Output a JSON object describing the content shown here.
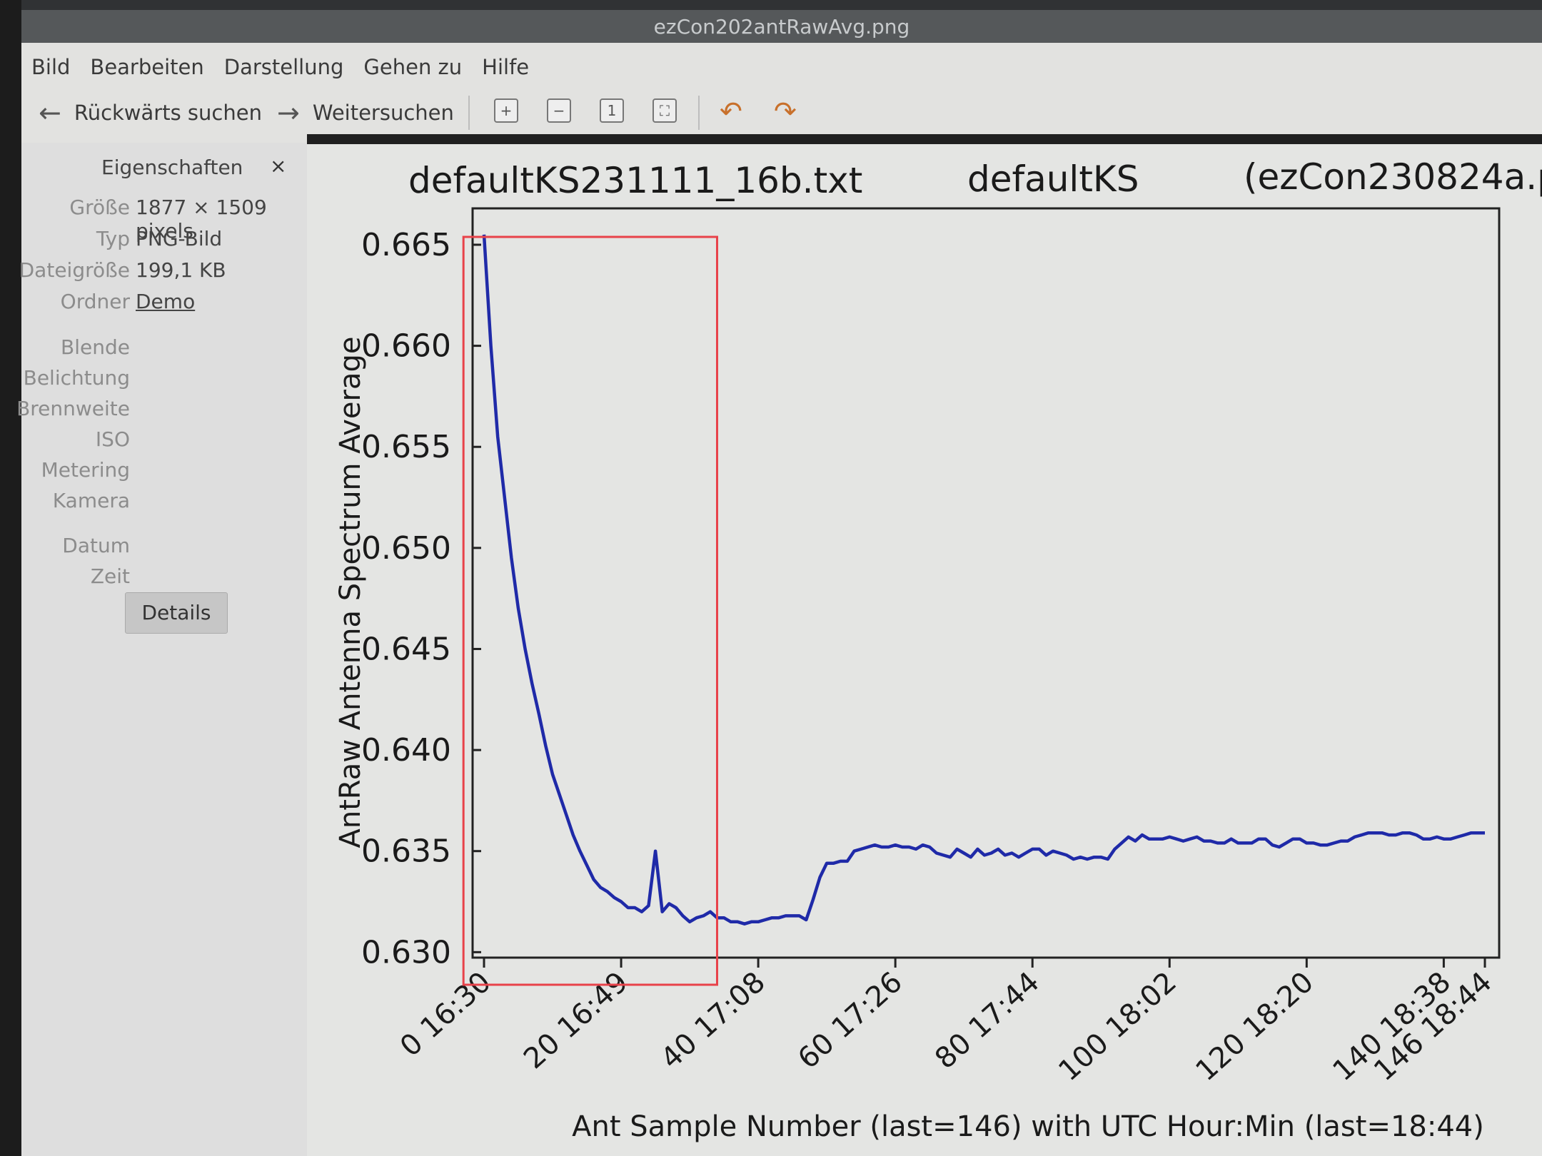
{
  "window": {
    "title": "ezCon202antRawAvg.png"
  },
  "menu": [
    "Bild",
    "Bearbeiten",
    "Darstellung",
    "Gehen zu",
    "Hilfe"
  ],
  "toolbar": {
    "back_label": "Rückwärts suchen",
    "forward_label": "Weitersuchen",
    "zoom_in_icon": "zoom-in-icon",
    "zoom_out_icon": "zoom-out-icon",
    "original_size_icon": "original-size-icon",
    "fit_icon": "fit-window-icon"
  },
  "sidebar": {
    "title": "Eigenschaften",
    "close": "×",
    "properties": [
      {
        "key": "Größe",
        "value": "1877 × 1509 pixels"
      },
      {
        "key": "Typ",
        "value": "PNG-Bild"
      },
      {
        "key": "Dateigröße",
        "value": "199,1 KB"
      },
      {
        "key": "Ordner",
        "value": "Demo"
      }
    ],
    "exif": [
      "Blende",
      "Belichtung",
      "Brennweite",
      "ISO",
      "Metering",
      "Kamera"
    ],
    "datetime": [
      "Datum",
      "Zeit"
    ],
    "details_button": "Details"
  },
  "chart_data": {
    "type": "line",
    "title_parts": [
      "defaultKS231111_16b.txt",
      "defaultKS",
      "(ezCon230824a.p"
    ],
    "xlabel": "Ant Sample Number (last=146) with UTC Hour:Min (last=18:44)",
    "ylabel": "AntRaw Antenna Spectrum Average",
    "xlim": [
      0,
      146
    ],
    "ylim": [
      0.6298,
      0.6668
    ],
    "yticks": [
      0.63,
      0.635,
      0.64,
      0.645,
      0.65,
      0.655,
      0.66,
      0.665
    ],
    "ytick_labels": [
      "0.630",
      "0.635",
      "0.640",
      "0.645",
      "0.650",
      "0.655",
      "0.660",
      "0.665"
    ],
    "xticks": [
      0,
      20,
      40,
      60,
      80,
      100,
      120,
      140,
      146
    ],
    "xtick_labels": [
      "0 16:30",
      "20 16:49",
      "40 17:08",
      "60 17:26",
      "80 17:44",
      "100 18:02",
      "120 18:20",
      "140 18:38",
      "146 18:44"
    ],
    "line_color": "#1f2aa8",
    "highlight_box_color": "#e8424a",
    "highlight_x_range": [
      -3,
      34
    ],
    "series": [
      {
        "x": [
          0,
          1,
          2,
          3,
          4,
          5,
          6,
          7,
          8,
          9,
          10,
          11,
          12,
          13,
          14,
          15,
          16,
          17,
          18,
          19,
          20,
          21,
          22,
          23,
          24,
          25,
          26,
          27,
          28,
          29,
          30,
          31,
          32,
          33,
          34,
          35,
          36,
          37,
          38,
          39,
          40,
          41,
          42,
          43,
          44,
          45,
          46,
          47,
          48,
          49,
          50,
          51,
          52,
          53,
          54,
          55,
          56,
          57,
          58,
          59,
          60,
          61,
          62,
          63,
          64,
          65,
          66,
          67,
          68,
          69,
          70,
          71,
          72,
          73,
          74,
          75,
          76,
          77,
          78,
          79,
          80,
          81,
          82,
          83,
          84,
          85,
          86,
          87,
          88,
          89,
          90,
          91,
          92,
          93,
          94,
          95,
          96,
          97,
          98,
          99,
          100,
          101,
          102,
          103,
          104,
          105,
          106,
          107,
          108,
          109,
          110,
          111,
          112,
          113,
          114,
          115,
          116,
          117,
          118,
          119,
          120,
          121,
          122,
          123,
          124,
          125,
          126,
          127,
          128,
          129,
          130,
          131,
          132,
          133,
          134,
          135,
          136,
          137,
          138,
          139,
          140,
          141,
          142,
          143,
          144,
          145,
          146
        ],
        "y": [
          0.6655,
          0.66,
          0.6555,
          0.6525,
          0.6495,
          0.647,
          0.645,
          0.6433,
          0.6418,
          0.6402,
          0.6388,
          0.6378,
          0.6368,
          0.6358,
          0.635,
          0.6343,
          0.6336,
          0.6332,
          0.633,
          0.6327,
          0.6325,
          0.6322,
          0.6322,
          0.632,
          0.6323,
          0.635,
          0.632,
          0.6324,
          0.6322,
          0.6318,
          0.6315,
          0.6317,
          0.6318,
          0.632,
          0.6317,
          0.6317,
          0.6315,
          0.6315,
          0.6314,
          0.6315,
          0.6315,
          0.6316,
          0.6317,
          0.6317,
          0.6318,
          0.6318,
          0.6318,
          0.6316,
          0.6326,
          0.6337,
          0.6344,
          0.6344,
          0.6345,
          0.6345,
          0.635,
          0.6351,
          0.6352,
          0.6353,
          0.6352,
          0.6352,
          0.6353,
          0.6352,
          0.6352,
          0.6351,
          0.6353,
          0.6352,
          0.6349,
          0.6348,
          0.6347,
          0.6351,
          0.6349,
          0.6347,
          0.6351,
          0.6348,
          0.6349,
          0.6351,
          0.6348,
          0.6349,
          0.6347,
          0.6349,
          0.6351,
          0.6351,
          0.6348,
          0.635,
          0.6349,
          0.6348,
          0.6346,
          0.6347,
          0.6346,
          0.6347,
          0.6347,
          0.6346,
          0.6351,
          0.6354,
          0.6357,
          0.6355,
          0.6358,
          0.6356,
          0.6356,
          0.6356,
          0.6357,
          0.6356,
          0.6355,
          0.6356,
          0.6357,
          0.6355,
          0.6355,
          0.6354,
          0.6354,
          0.6356,
          0.6354,
          0.6354,
          0.6354,
          0.6356,
          0.6356,
          0.6353,
          0.6352,
          0.6354,
          0.6356,
          0.6356,
          0.6354,
          0.6354,
          0.6353,
          0.6353,
          0.6354,
          0.6355,
          0.6355,
          0.6357,
          0.6358,
          0.6359,
          0.6359,
          0.6359,
          0.6358,
          0.6358,
          0.6359,
          0.6359,
          0.6358,
          0.6356,
          0.6356,
          0.6357,
          0.6356,
          0.6356,
          0.6357,
          0.6358,
          0.6359,
          0.6359,
          0.6359
        ]
      }
    ]
  }
}
